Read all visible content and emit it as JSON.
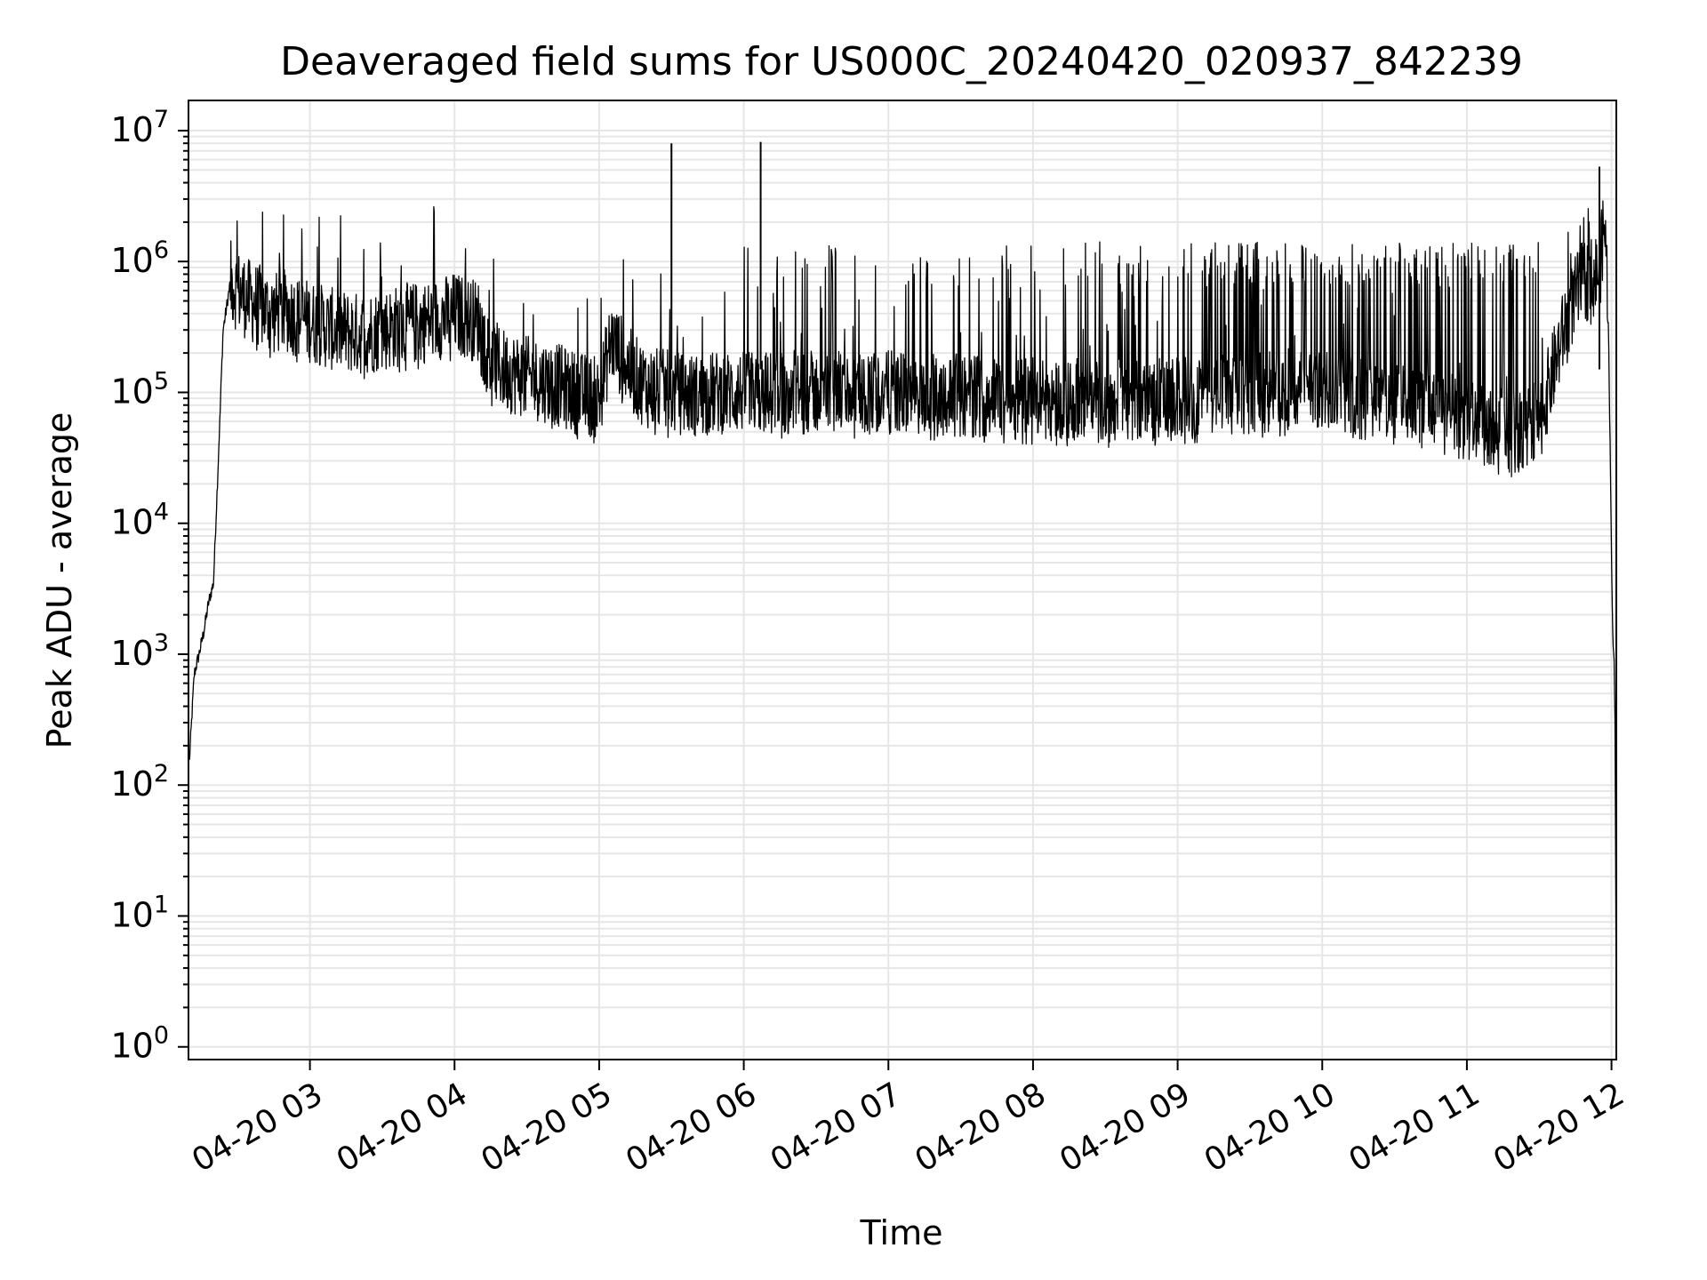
{
  "chart_data": {
    "type": "line",
    "title": "Deaveraged field sums for US000C_20240420_020937_842239",
    "xlabel": "Time",
    "ylabel": "Peak ADU - average",
    "yscale": "log",
    "ylim": [
      0.8,
      17000000
    ],
    "xlim": [
      "2024-04-20 02:09:37",
      "2024-04-20 12:02:00"
    ],
    "xticks": [
      {
        "value": "2024-04-20 03:00:00",
        "label": "04-20 03"
      },
      {
        "value": "2024-04-20 04:00:00",
        "label": "04-20 04"
      },
      {
        "value": "2024-04-20 05:00:00",
        "label": "04-20 05"
      },
      {
        "value": "2024-04-20 06:00:00",
        "label": "04-20 06"
      },
      {
        "value": "2024-04-20 07:00:00",
        "label": "04-20 07"
      },
      {
        "value": "2024-04-20 08:00:00",
        "label": "04-20 08"
      },
      {
        "value": "2024-04-20 09:00:00",
        "label": "04-20 09"
      },
      {
        "value": "2024-04-20 10:00:00",
        "label": "04-20 10"
      },
      {
        "value": "2024-04-20 11:00:00",
        "label": "04-20 11"
      },
      {
        "value": "2024-04-20 12:00:00",
        "label": "04-20 12"
      }
    ],
    "yticks": [
      {
        "value": 1,
        "base": "10",
        "exp": "0"
      },
      {
        "value": 10,
        "base": "10",
        "exp": "1"
      },
      {
        "value": 100,
        "base": "10",
        "exp": "2"
      },
      {
        "value": 1000,
        "base": "10",
        "exp": "3"
      },
      {
        "value": 10000,
        "base": "10",
        "exp": "4"
      },
      {
        "value": 100000,
        "base": "10",
        "exp": "5"
      },
      {
        "value": 1000000,
        "base": "10",
        "exp": "6"
      },
      {
        "value": 10000000,
        "base": "10",
        "exp": "7"
      }
    ],
    "grid": true,
    "grid_minor": true,
    "series_color": "#000000",
    "grid_color": "#e6e6e6",
    "series": [
      {
        "x": [
          "2024-04-20 02:10:00",
          "2024-04-20 02:12:00",
          "2024-04-20 02:14:00",
          "2024-04-20 02:16:00",
          "2024-04-20 02:18:00",
          "2024-04-20 02:20:00",
          "2024-04-20 02:22:00",
          "2024-04-20 02:24:00",
          "2024-04-20 02:27:00",
          "2024-04-20 02:30:00",
          "2024-04-20 02:35:00",
          "2024-04-20 02:40:00",
          "2024-04-20 02:45:00",
          "2024-04-20 02:50:00",
          "2024-04-20 02:55:00",
          "2024-04-20 03:00:00",
          "2024-04-20 03:10:00",
          "2024-04-20 03:20:00",
          "2024-04-20 03:30:00",
          "2024-04-20 03:40:00",
          "2024-04-20 03:50:00",
          "2024-04-20 04:00:00",
          "2024-04-20 04:10:00",
          "2024-04-20 04:15:00",
          "2024-04-20 04:20:00",
          "2024-04-20 04:30:00",
          "2024-04-20 04:40:00",
          "2024-04-20 04:50:00",
          "2024-04-20 05:00:00",
          "2024-04-20 05:05:00",
          "2024-04-20 05:10:00",
          "2024-04-20 05:15:00",
          "2024-04-20 05:20:00",
          "2024-04-20 05:30:00",
          "2024-04-20 05:40:00",
          "2024-04-20 05:50:00",
          "2024-04-20 06:00:00",
          "2024-04-20 06:30:00",
          "2024-04-20 07:00:00",
          "2024-04-20 07:30:00",
          "2024-04-20 08:00:00",
          "2024-04-20 08:30:00",
          "2024-04-20 09:00:00",
          "2024-04-20 09:30:00",
          "2024-04-20 10:00:00",
          "2024-04-20 10:30:00",
          "2024-04-20 10:50:00",
          "2024-04-20 11:00:00",
          "2024-04-20 11:20:00",
          "2024-04-20 11:30:00",
          "2024-04-20 11:36:00",
          "2024-04-20 11:42:00",
          "2024-04-20 11:48:00",
          "2024-04-20 11:52:00",
          "2024-04-20 11:54:00",
          "2024-04-20 11:55:30",
          "2024-04-20 11:57:00",
          "2024-04-20 11:58:30",
          "2024-04-20 11:59:30",
          "2024-04-20 12:00:30",
          "2024-04-20 12:01:00",
          "2024-04-20 12:01:30",
          "2024-04-20 12:02:00"
        ],
        "y": [
          150,
          700,
          1000,
          1500,
          2500,
          3500,
          30000,
          300000,
          700000,
          600000,
          500000,
          450000,
          400000,
          420000,
          380000,
          350000,
          300000,
          280000,
          300000,
          330000,
          350000,
          400000,
          350000,
          180000,
          150000,
          130000,
          120000,
          100000,
          90000,
          250000,
          180000,
          130000,
          110000,
          100000,
          95000,
          100000,
          100000,
          100000,
          100000,
          95000,
          90000,
          85000,
          90000,
          100000,
          110000,
          90000,
          70000,
          60000,
          50000,
          60000,
          150000,
          400000,
          700000,
          750000,
          800000,
          1000000,
          2000000,
          600000,
          30000,
          1500,
          1000,
          300,
          1
        ]
      }
    ],
    "spikes": [
      {
        "x": "2024-04-20 05:30:00",
        "y": 8000000
      },
      {
        "x": "2024-04-20 06:07:00",
        "y": 8200000
      },
      {
        "x": "2024-04-20 11:55:00",
        "y": 5300000
      }
    ]
  }
}
